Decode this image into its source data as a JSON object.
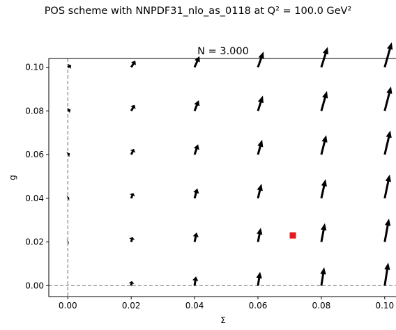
{
  "figure": {
    "suptitle": "POS scheme with NNPDF31_nlo_as_0118 at Q² = 100.0 GeV²"
  },
  "chart_data": {
    "type": "quiver",
    "title": "N = 3.000",
    "xlabel": "Σ",
    "ylabel": "g",
    "xlim": [
      -0.006,
      0.104
    ],
    "ylim": [
      -0.005,
      0.104
    ],
    "xticks": [
      0.0,
      0.02,
      0.04,
      0.06,
      0.08,
      0.1
    ],
    "xtick_labels": [
      "0.00",
      "0.02",
      "0.04",
      "0.06",
      "0.08",
      "0.10"
    ],
    "yticks": [
      0.0,
      0.02,
      0.04,
      0.06,
      0.08,
      0.1
    ],
    "ytick_labels": [
      "0.00",
      "0.02",
      "0.04",
      "0.06",
      "0.08",
      "0.10"
    ],
    "grid": false,
    "reference_lines": {
      "x": 0.0,
      "y": 0.0,
      "style": "dashed",
      "color": "#808080"
    },
    "arrow_color": "#000000",
    "arrow_grid": {
      "sigma": [
        0.0,
        0.02,
        0.04,
        0.06,
        0.08,
        0.1
      ],
      "g": [
        0.0,
        0.02,
        0.04,
        0.06,
        0.08,
        0.1
      ]
    },
    "arrow_components": {
      "dsigma_per_sigma": 0.155,
      "dsigma_per_g": 0.15,
      "dg_per_sigma": 1.0,
      "dg_per_g": 0.08
    },
    "fixed_point": {
      "sigma": 0.071,
      "g": 0.023,
      "color": "#e41a1c",
      "marker": "square"
    }
  }
}
